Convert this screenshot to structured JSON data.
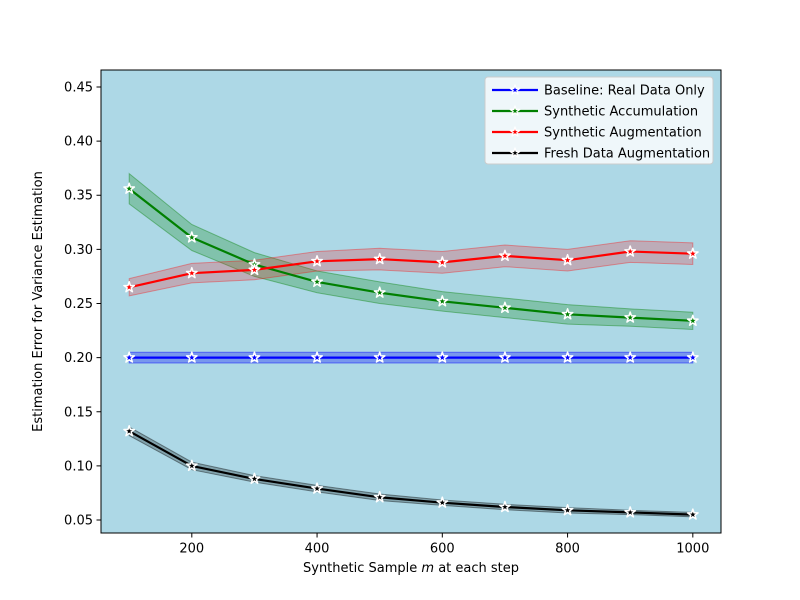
{
  "figure": {
    "background": "#ffffff",
    "plot_background": "#ADD8E6",
    "spine_color": "#000000",
    "legend_border_color": "#cccccc",
    "legend_background": "#ffffff"
  },
  "chart_data": {
    "type": "line",
    "title": "",
    "xlabel": "Synthetic Sample m at each step",
    "xlabel_parts": [
      "Synthetic Sample ",
      "m",
      " at each step"
    ],
    "ylabel": "Estimation Error for Variance Estimation",
    "x": [
      100,
      200,
      300,
      400,
      500,
      600,
      700,
      800,
      900,
      1000
    ],
    "xticks": [
      200,
      400,
      600,
      800,
      1000
    ],
    "yticks": [
      0.05,
      0.1,
      0.15,
      0.2,
      0.25,
      0.3,
      0.35,
      0.4,
      0.45
    ],
    "xlim": [
      55,
      1045
    ],
    "ylim": [
      0.038,
      0.4657
    ],
    "grid": false,
    "marker": "star",
    "legend_position": "upper right",
    "series": [
      {
        "name": "Baseline: Real Data Only",
        "color": "#0000ff",
        "values": [
          0.2,
          0.2,
          0.2,
          0.2,
          0.2,
          0.2,
          0.2,
          0.2,
          0.2,
          0.2
        ],
        "band": [
          0.005,
          0.005,
          0.005,
          0.005,
          0.005,
          0.005,
          0.005,
          0.005,
          0.005,
          0.005
        ],
        "band_alpha": 0.3
      },
      {
        "name": "Synthetic Accumulation",
        "color": "#008000",
        "values": [
          0.356,
          0.311,
          0.286,
          0.27,
          0.26,
          0.252,
          0.246,
          0.24,
          0.237,
          0.234
        ],
        "band": [
          0.014,
          0.012,
          0.011,
          0.01,
          0.01,
          0.009,
          0.009,
          0.009,
          0.008,
          0.008
        ],
        "band_alpha": 0.25
      },
      {
        "name": "Synthetic Augmentation",
        "color": "#ff0000",
        "values": [
          0.265,
          0.278,
          0.281,
          0.289,
          0.291,
          0.288,
          0.294,
          0.29,
          0.298,
          0.296
        ],
        "band": [
          0.008,
          0.009,
          0.009,
          0.009,
          0.01,
          0.01,
          0.01,
          0.01,
          0.01,
          0.01
        ],
        "band_alpha": 0.2
      },
      {
        "name": "Fresh Data Augmentation",
        "color": "#000000",
        "values": [
          0.132,
          0.1,
          0.088,
          0.079,
          0.071,
          0.066,
          0.062,
          0.059,
          0.057,
          0.055
        ],
        "band": [
          0.004,
          0.0035,
          0.003,
          0.003,
          0.003,
          0.0025,
          0.0025,
          0.0025,
          0.002,
          0.002
        ],
        "band_alpha": 0.25
      }
    ]
  }
}
